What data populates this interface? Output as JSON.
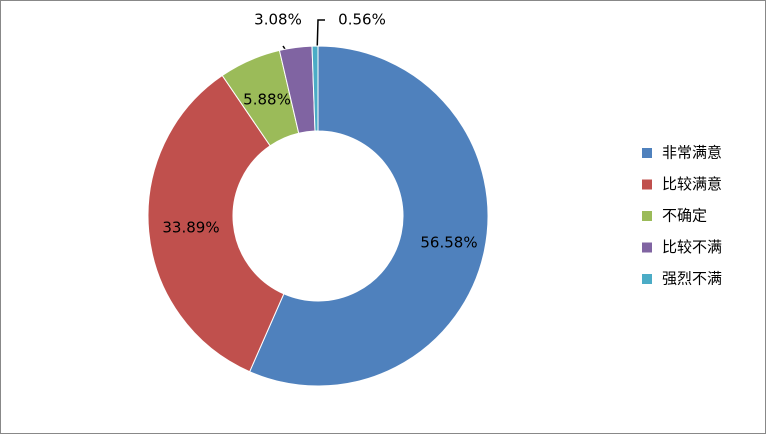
{
  "chart_data": {
    "type": "donut",
    "categories": [
      "非常满意",
      "比较满意",
      "不确定",
      "比较不满",
      "强烈不满"
    ],
    "values": [
      56.58,
      33.89,
      5.88,
      3.08,
      0.56
    ],
    "value_labels": [
      "56.58%",
      "33.89%",
      "5.88%",
      "3.08%",
      "0.56%"
    ],
    "colors": [
      "#4f81bd",
      "#c0504d",
      "#9bbb59",
      "#8064a2",
      "#4bacc6"
    ],
    "legend": "right"
  }
}
